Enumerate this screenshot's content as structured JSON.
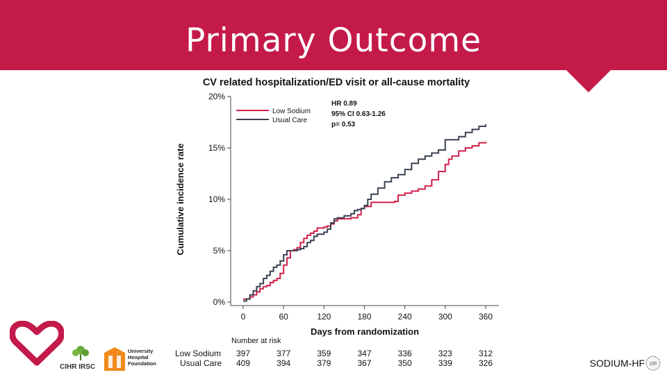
{
  "slide": {
    "title": "Primary Outcome",
    "accent_color": "#c41a4a",
    "footer_brand": "SODIUM-HF",
    "badge_text": "100"
  },
  "logos": [
    {
      "name": "heart-logo",
      "color": "#c41a4a"
    },
    {
      "name": "cihr-irsc-logo",
      "text": "CIHR IRSC"
    },
    {
      "name": "university-hospital-foundation-logo",
      "lines": [
        "University",
        "Hospital",
        "Foundation"
      ]
    }
  ],
  "chart_data": {
    "type": "line",
    "title": "CV related hospitalization/ED visit or all-cause mortality",
    "xlabel": "Days from randomization",
    "ylabel": "Cumulative incidence rate",
    "xlim": [
      0,
      360
    ],
    "ylim": [
      0,
      20
    ],
    "xticks": [
      0,
      60,
      120,
      180,
      240,
      300,
      360
    ],
    "yticks": [
      0,
      5,
      10,
      15,
      20
    ],
    "ytick_labels": [
      "0%",
      "5%",
      "10%",
      "15%",
      "20%"
    ],
    "grid": false,
    "legend_position": "top-left",
    "annotation": [
      "HR 0.89",
      "95% CI 0.63-1.26",
      "p= 0.53"
    ],
    "series": [
      {
        "name": "Low Sodium",
        "color": "#d21f4b",
        "points": [
          [
            0,
            0.3
          ],
          [
            5,
            0.3
          ],
          [
            10,
            0.5
          ],
          [
            15,
            0.7
          ],
          [
            20,
            1.0
          ],
          [
            25,
            1.3
          ],
          [
            30,
            1.5
          ],
          [
            35,
            1.6
          ],
          [
            40,
            1.9
          ],
          [
            45,
            2.1
          ],
          [
            50,
            2.3
          ],
          [
            55,
            2.8
          ],
          [
            60,
            3.6
          ],
          [
            65,
            4.3
          ],
          [
            70,
            5.0
          ],
          [
            75,
            5.1
          ],
          [
            80,
            5.3
          ],
          [
            85,
            5.8
          ],
          [
            90,
            6.2
          ],
          [
            95,
            6.5
          ],
          [
            100,
            6.7
          ],
          [
            105,
            6.9
          ],
          [
            110,
            7.2
          ],
          [
            120,
            7.3
          ],
          [
            125,
            7.4
          ],
          [
            130,
            7.6
          ],
          [
            135,
            7.9
          ],
          [
            140,
            8.1
          ],
          [
            150,
            8.1
          ],
          [
            160,
            8.2
          ],
          [
            170,
            8.5
          ],
          [
            175,
            9.1
          ],
          [
            180,
            9.3
          ],
          [
            190,
            9.7
          ],
          [
            210,
            9.7
          ],
          [
            225,
            9.8
          ],
          [
            230,
            10.4
          ],
          [
            240,
            10.6
          ],
          [
            250,
            10.8
          ],
          [
            260,
            11.0
          ],
          [
            270,
            11.3
          ],
          [
            280,
            11.9
          ],
          [
            290,
            12.7
          ],
          [
            300,
            13.4
          ],
          [
            305,
            13.9
          ],
          [
            310,
            14.2
          ],
          [
            320,
            14.7
          ],
          [
            330,
            15.0
          ],
          [
            340,
            15.2
          ],
          [
            350,
            15.5
          ],
          [
            360,
            15.6
          ]
        ]
      },
      {
        "name": "Usual Care",
        "color": "#3a4150",
        "points": [
          [
            0,
            0.1
          ],
          [
            5,
            0.3
          ],
          [
            10,
            0.7
          ],
          [
            15,
            1.1
          ],
          [
            20,
            1.5
          ],
          [
            25,
            1.8
          ],
          [
            30,
            2.3
          ],
          [
            35,
            2.6
          ],
          [
            40,
            3.0
          ],
          [
            45,
            3.4
          ],
          [
            50,
            3.6
          ],
          [
            55,
            4.0
          ],
          [
            60,
            4.6
          ],
          [
            65,
            5.0
          ],
          [
            70,
            5.0
          ],
          [
            80,
            5.1
          ],
          [
            85,
            5.2
          ],
          [
            90,
            5.4
          ],
          [
            95,
            5.8
          ],
          [
            100,
            6.0
          ],
          [
            105,
            6.4
          ],
          [
            110,
            6.6
          ],
          [
            120,
            6.8
          ],
          [
            125,
            7.1
          ],
          [
            130,
            7.7
          ],
          [
            135,
            8.1
          ],
          [
            140,
            8.2
          ],
          [
            150,
            8.4
          ],
          [
            160,
            8.6
          ],
          [
            165,
            8.9
          ],
          [
            170,
            9.0
          ],
          [
            175,
            9.1
          ],
          [
            180,
            9.4
          ],
          [
            185,
            10.0
          ],
          [
            190,
            10.5
          ],
          [
            200,
            11.1
          ],
          [
            210,
            11.7
          ],
          [
            220,
            12.1
          ],
          [
            230,
            12.4
          ],
          [
            240,
            12.9
          ],
          [
            250,
            13.5
          ],
          [
            260,
            13.9
          ],
          [
            270,
            14.2
          ],
          [
            280,
            14.5
          ],
          [
            290,
            14.8
          ],
          [
            300,
            15.8
          ],
          [
            310,
            15.8
          ],
          [
            320,
            16.1
          ],
          [
            330,
            16.5
          ],
          [
            340,
            16.8
          ],
          [
            350,
            17.1
          ],
          [
            360,
            17.3
          ]
        ]
      }
    ],
    "risk_table": {
      "header": "Number at risk",
      "rows": [
        {
          "label": "Low Sodium",
          "values": [
            397,
            377,
            359,
            347,
            336,
            323,
            312
          ]
        },
        {
          "label": "Usual Care",
          "values": [
            409,
            394,
            379,
            367,
            350,
            339,
            326
          ]
        }
      ]
    }
  }
}
